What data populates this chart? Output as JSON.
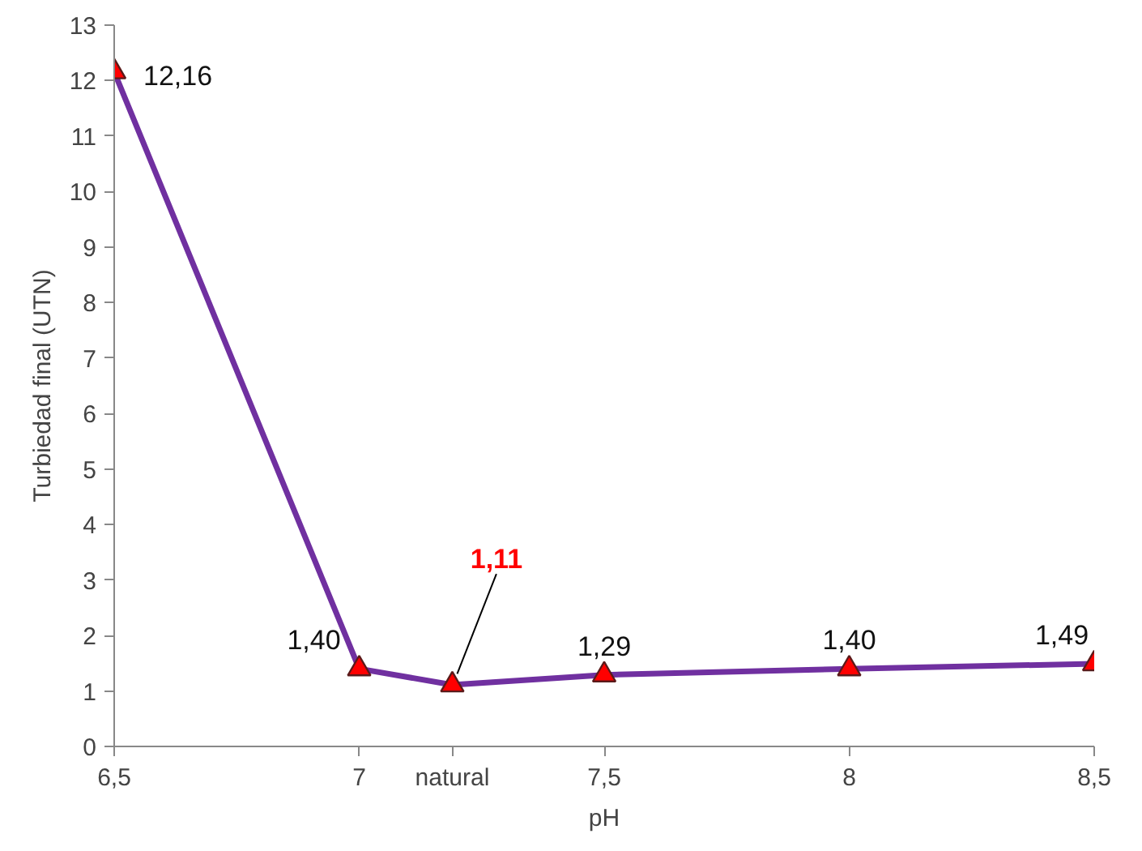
{
  "chart_data": {
    "type": "line",
    "xlabel": "pH",
    "ylabel": "Turbiedad final (UTN)",
    "x": [
      6.5,
      7,
      7.19,
      7.5,
      8,
      8.5
    ],
    "series": [
      {
        "color": "#7030a0",
        "colors": [
          "#ff0000",
          "#ff0000",
          "#ff0000",
          "#ff0000",
          "#ff0000",
          "#ff0000"
        ],
        "values": [
          12.16,
          1.4,
          1.11,
          1.29,
          1.4,
          1.49
        ],
        "value_labels": [
          "12,16",
          "1,40",
          null,
          "1,29",
          "1,40",
          "1,49"
        ]
      }
    ],
    "annotations": [
      {
        "text": "1,11",
        "x": 7.19,
        "y": 1.11
      }
    ],
    "xlim": [
      6.5,
      8.5
    ],
    "xticks": [
      {
        "value": 6.5,
        "label": "6,5"
      },
      7,
      {
        "value": 7.19,
        "label": "natural"
      },
      {
        "value": 7.5,
        "label": "7,5"
      },
      8,
      {
        "value": 8.5,
        "label": "8,5"
      }
    ],
    "ylim": [
      0,
      13
    ],
    "yticks": [
      0,
      1,
      2,
      3,
      4,
      5,
      6,
      7,
      8,
      9,
      10,
      11,
      12,
      13
    ],
    "grid": false,
    "marker": "triangle",
    "line_style": "solid"
  }
}
